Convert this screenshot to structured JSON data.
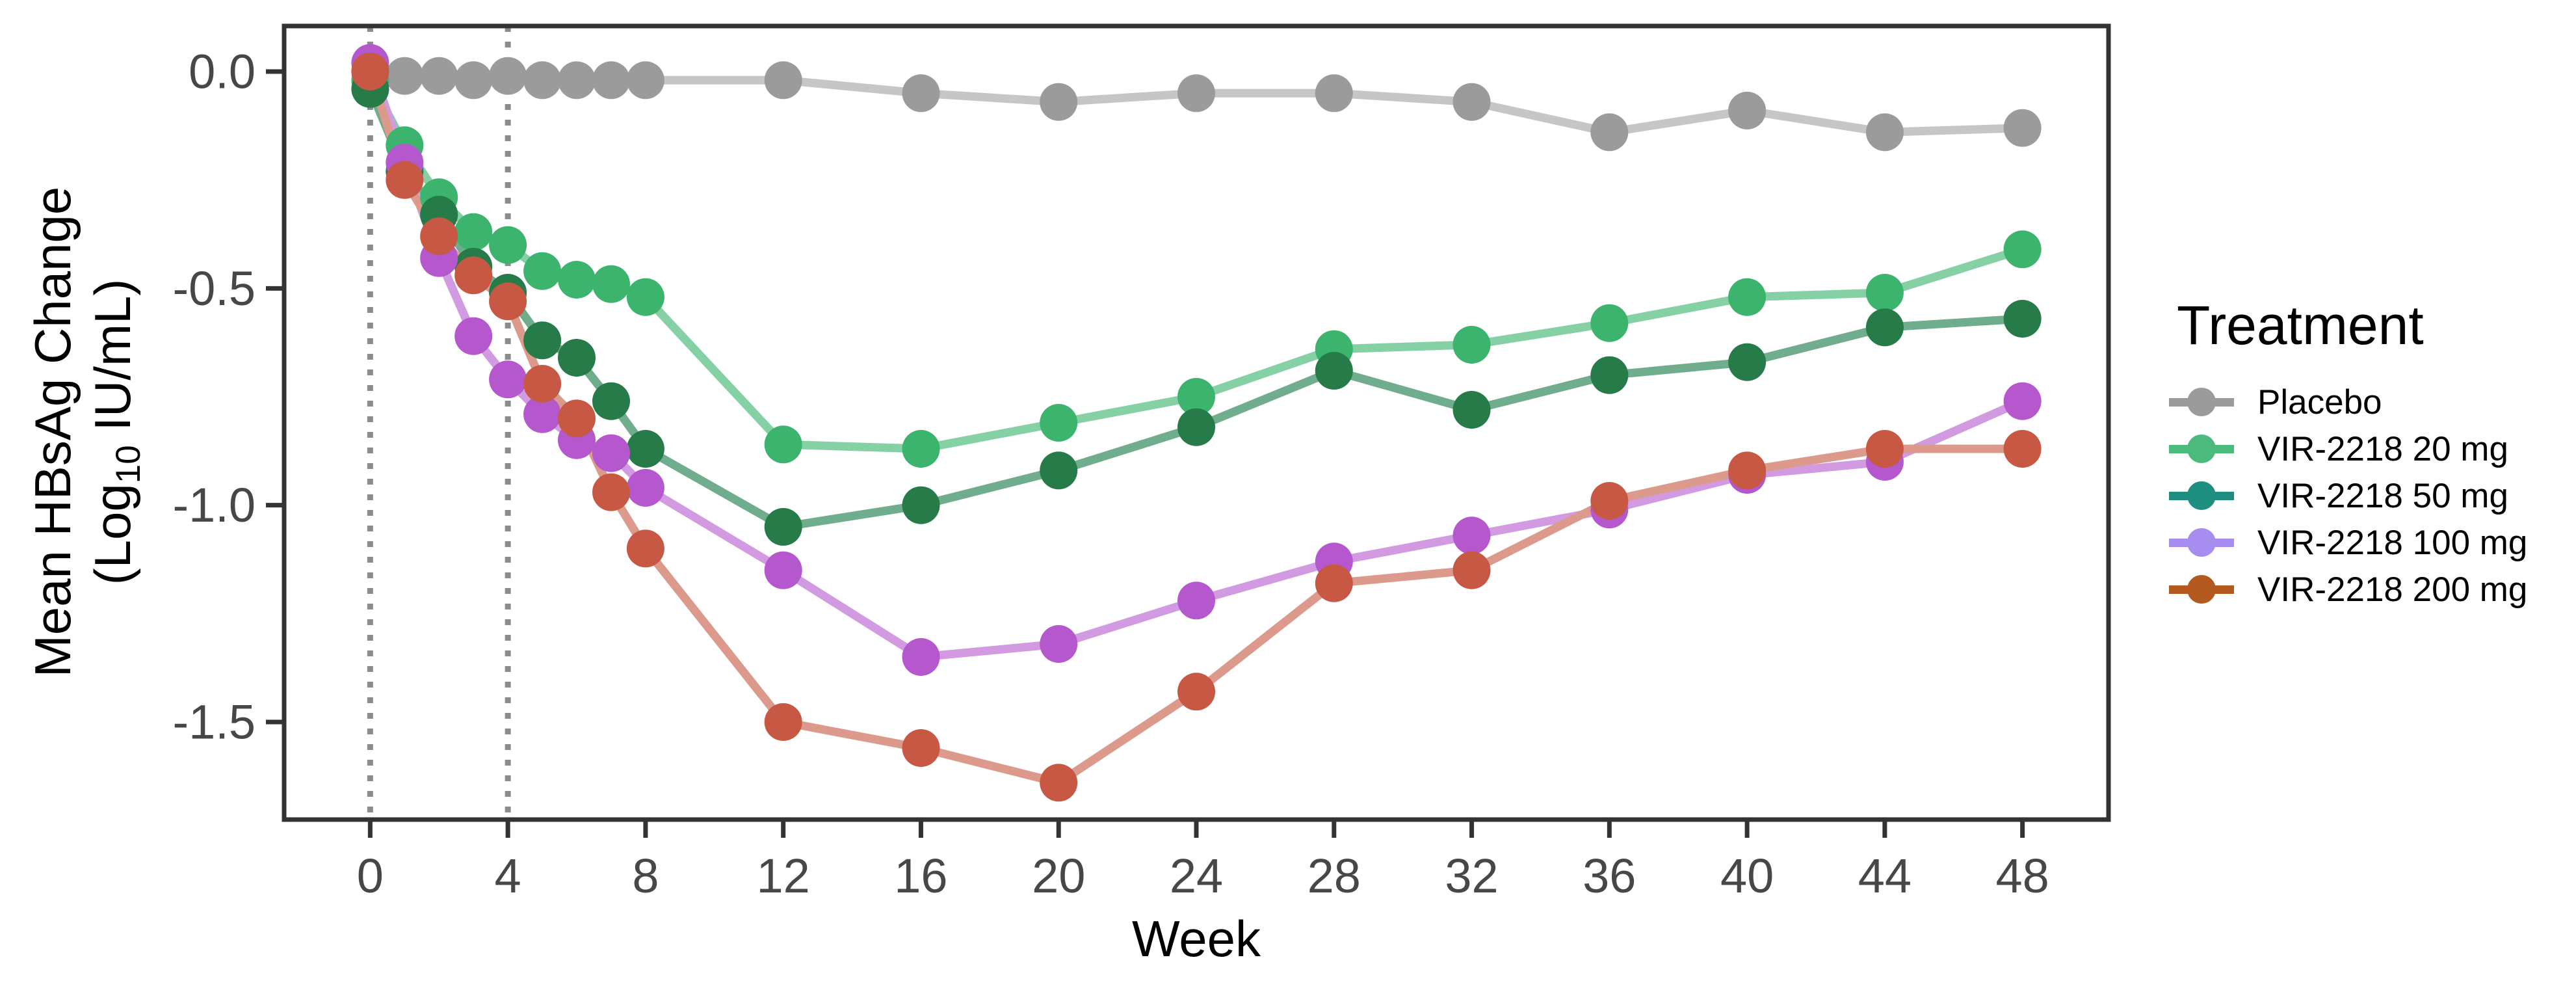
{
  "figure": {
    "background": "#ffffff"
  },
  "labels": {
    "x_title": "Week",
    "y_title_line1": "Mean HBsAg Change",
    "y_title_line2_open": "(Log",
    "y_title_line2_sub": "10",
    "y_title_line2_close": " IU/mL)"
  },
  "legend": {
    "title": "Treatment"
  },
  "chart_data": {
    "type": "line",
    "title": "",
    "xlabel": "Week",
    "ylabel": "Mean HBsAg Change (Log10 IU/mL)",
    "x": [
      0,
      1,
      2,
      3,
      4,
      5,
      6,
      7,
      8,
      12,
      16,
      20,
      24,
      28,
      32,
      36,
      40,
      44,
      48
    ],
    "x_ticks": [
      0,
      4,
      8,
      12,
      16,
      20,
      24,
      28,
      32,
      36,
      40,
      44,
      48
    ],
    "y_ticks": [
      {
        "value": 0.0,
        "label": "0.0"
      },
      {
        "value": -0.5,
        "label": "-0.5"
      },
      {
        "value": -1.0,
        "label": "-1.0"
      },
      {
        "value": -1.5,
        "label": "-1.5"
      }
    ],
    "xlim": [
      -2.5,
      50.5
    ],
    "ylim": [
      -1.725,
      0.105
    ],
    "reference_weeks": [
      0,
      4
    ],
    "grid": false,
    "legend_position": "right",
    "axis_colors": {
      "border": "#333333",
      "tick": "#333333",
      "tick_label": "#474747",
      "reference_line": "#8c8c8c"
    },
    "series": [
      {
        "name": "Placebo",
        "point_color": "#9b9b9b",
        "line_color": "#c6c6c6",
        "legend_color": "#9b9b9b",
        "values": [
          0.0,
          -0.01,
          -0.01,
          -0.02,
          -0.01,
          -0.02,
          -0.02,
          -0.02,
          -0.02,
          -0.02,
          -0.05,
          -0.07,
          -0.05,
          -0.05,
          -0.07,
          -0.14,
          -0.09,
          -0.14,
          -0.13
        ]
      },
      {
        "name": "VIR-2218 20 mg",
        "point_color": "#3cb46e",
        "line_color": "#86d0a5",
        "legend_color": "#4cba7c",
        "values": [
          -0.02,
          -0.17,
          -0.29,
          -0.37,
          -0.4,
          -0.46,
          -0.48,
          -0.49,
          -0.52,
          -0.86,
          -0.87,
          -0.81,
          -0.75,
          -0.64,
          -0.63,
          -0.58,
          -0.52,
          -0.51,
          -0.41
        ]
      },
      {
        "name": "VIR-2218 50 mg",
        "point_color": "#267b48",
        "line_color": "#6fad8c",
        "legend_color": "#1d8e80",
        "values": [
          -0.04,
          -0.23,
          -0.33,
          -0.45,
          -0.51,
          -0.62,
          -0.66,
          -0.76,
          -0.87,
          -1.05,
          -1.0,
          -0.92,
          -0.82,
          -0.69,
          -0.78,
          -0.7,
          -0.67,
          -0.59,
          -0.57
        ]
      },
      {
        "name": "VIR-2218 100 mg",
        "point_color": "#b557cd",
        "line_color": "#d29ae1",
        "legend_color": "#a78df0",
        "values": [
          0.02,
          -0.21,
          -0.43,
          -0.61,
          -0.71,
          -0.79,
          -0.85,
          -0.88,
          -0.96,
          -1.15,
          -1.35,
          -1.32,
          -1.22,
          -1.13,
          -1.07,
          -1.01,
          -0.93,
          -0.9,
          -0.76
        ]
      },
      {
        "name": "VIR-2218 200 mg",
        "point_color": "#c75843",
        "line_color": "#dc9a8c",
        "legend_color": "#b45a20",
        "values": [
          0.0,
          -0.25,
          -0.38,
          -0.47,
          -0.53,
          -0.72,
          -0.8,
          -0.97,
          -1.1,
          -1.5,
          -1.56,
          -1.64,
          -1.43,
          -1.18,
          -1.15,
          -0.99,
          -0.92,
          -0.87,
          -0.87
        ]
      }
    ]
  }
}
